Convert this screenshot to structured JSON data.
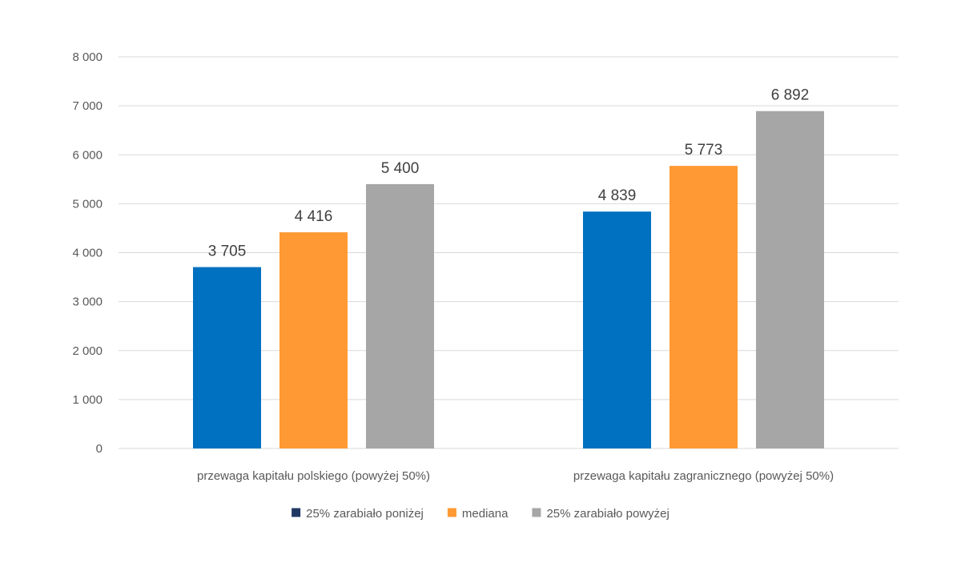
{
  "chart_data": {
    "type": "bar",
    "categories": [
      "przewaga kapitału polskiego (powyżej 50%)",
      "przewaga kapitału zagranicznego (powyżej 50%)"
    ],
    "series": [
      {
        "name": "25% zarabiało poniżej",
        "values": [
          3705,
          4839
        ],
        "value_labels": [
          "3 705",
          "4 839"
        ],
        "color": "#0070c0",
        "legend_color": "#203864"
      },
      {
        "name": "mediana",
        "values": [
          4416,
          5773
        ],
        "value_labels": [
          "4 416",
          "5 773"
        ],
        "color": "#ff9933",
        "legend_color": "#ff9933"
      },
      {
        "name": "25% zarabiało powyżej",
        "values": [
          5400,
          6892
        ],
        "value_labels": [
          "5 400",
          "6 892"
        ],
        "color": "#a6a6a6",
        "legend_color": "#a6a6a6"
      }
    ],
    "ylim": [
      0,
      8000
    ],
    "y_ticks": [
      0,
      1000,
      2000,
      3000,
      4000,
      5000,
      6000,
      7000,
      8000
    ],
    "y_tick_labels": [
      "0",
      "1 000",
      "2 000",
      "3 000",
      "4 000",
      "5 000",
      "6 000",
      "7 000",
      "8 000"
    ],
    "grid": true,
    "legend_position": "bottom",
    "title": "",
    "xlabel": "",
    "ylabel": ""
  }
}
